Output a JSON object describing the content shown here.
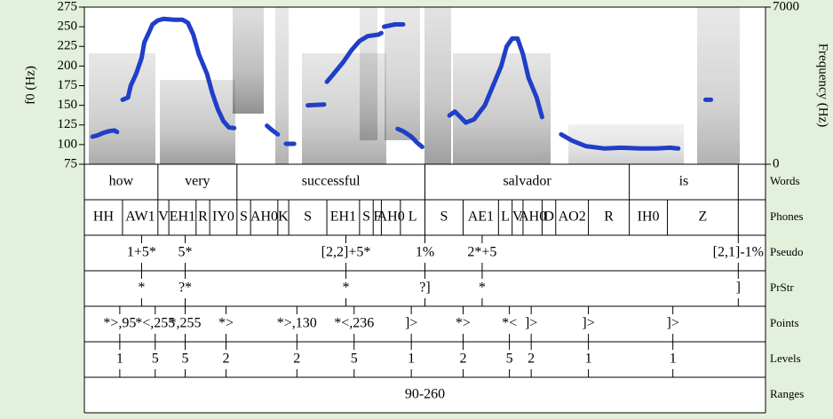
{
  "chart_data": {
    "type": "line",
    "ylabel": "f0 (Hz)",
    "y2label": "Frequency (Hz)",
    "xlim": [
      0,
      2.5
    ],
    "ylim": [
      75,
      275
    ],
    "yticks": [
      75,
      100,
      125,
      150,
      175,
      200,
      225,
      250,
      275
    ],
    "y2lim": [
      0,
      7000
    ],
    "y2ticks": [
      0,
      7000
    ],
    "series": [
      {
        "color": "#1f3fc8",
        "x": [
          0.03,
          0.05,
          0.07,
          0.09,
          0.11,
          0.12,
          null,
          0.14,
          0.16,
          0.17,
          0.19,
          0.21,
          0.22,
          0.24,
          0.25,
          0.27,
          0.29,
          0.33,
          0.36,
          0.38,
          0.4,
          0.42,
          0.45,
          0.47,
          0.49,
          0.51,
          0.53,
          0.55,
          null,
          0.67,
          0.69,
          0.71,
          null,
          0.74,
          0.77,
          null,
          0.82,
          0.88,
          null,
          0.89,
          0.91,
          0.95,
          0.98,
          1.01,
          1.04,
          1.08,
          1.09,
          null,
          1.1,
          1.14,
          1.17,
          null,
          1.15,
          1.17,
          1.2,
          1.22,
          1.24,
          null,
          1.34,
          1.36,
          1.38,
          1.4,
          1.43,
          1.47,
          1.5,
          1.53,
          1.55,
          1.57,
          1.59,
          1.61,
          1.63,
          1.66,
          1.68,
          null,
          1.75,
          1.79,
          1.84,
          1.91,
          1.97,
          2.04,
          2.1,
          2.15,
          2.18,
          null,
          2.28,
          2.3
        ],
        "values": [
          110,
          112,
          115,
          117,
          118,
          116,
          null,
          157,
          160,
          175,
          190,
          210,
          230,
          245,
          253,
          258,
          260,
          259,
          259,
          255,
          240,
          215,
          190,
          165,
          145,
          130,
          122,
          121,
          null,
          124,
          118,
          113,
          null,
          101,
          101,
          null,
          150,
          151,
          null,
          180,
          188,
          205,
          220,
          232,
          238,
          240,
          242,
          null,
          250,
          253,
          253,
          null,
          120,
          117,
          110,
          103,
          97,
          null,
          137,
          142,
          135,
          128,
          132,
          150,
          175,
          200,
          225,
          235,
          235,
          215,
          185,
          160,
          135,
          null,
          113,
          105,
          98,
          95,
          96,
          95,
          95,
          96,
          95,
          null,
          157,
          157
        ]
      }
    ],
    "tiers": [
      {
        "name": "Words",
        "kind": "interval",
        "boundaries": [
          0,
          0.27,
          0.56,
          1.25,
          2.0,
          2.4,
          2.5
        ],
        "labels": [
          "how",
          "very",
          "successful",
          "salvador",
          "is",
          null
        ]
      },
      {
        "name": "Phones",
        "kind": "interval",
        "boundaries": [
          0,
          0.14,
          0.27,
          0.31,
          0.41,
          0.46,
          0.56,
          0.61,
          0.71,
          0.75,
          0.89,
          1.01,
          1.06,
          1.09,
          1.16,
          1.25,
          1.39,
          1.52,
          1.57,
          1.61,
          1.68,
          1.73,
          1.85,
          2.0,
          2.14,
          2.4,
          2.5
        ],
        "labels": [
          "HH",
          "AW1",
          "V",
          "EH1",
          "R",
          "IY0",
          "S",
          "AH0",
          "K",
          "S",
          "EH1",
          "S",
          "F",
          "AH0",
          "L",
          "S",
          "AE1",
          "L",
          "V",
          "AH0",
          "D",
          "AO2",
          "R",
          "IH0",
          "Z",
          null
        ]
      },
      {
        "name": "Pseudo",
        "kind": "point",
        "times": [
          0.21,
          0.37,
          0.96,
          1.25,
          1.46,
          2.4
        ],
        "labels": [
          "1+5*",
          "5*",
          "[2,2]+5*",
          "1%",
          "2*+5",
          "[2,1]-1%"
        ]
      },
      {
        "name": "PrStr",
        "kind": "point",
        "times": [
          0.21,
          0.37,
          0.96,
          1.25,
          1.46,
          2.4
        ],
        "labels": [
          "*",
          "?*",
          "*",
          "?]",
          "*",
          "]"
        ]
      },
      {
        "name": "Points",
        "kind": "point",
        "times": [
          0.13,
          0.26,
          0.37,
          0.52,
          0.78,
          0.99,
          1.2,
          1.39,
          1.56,
          1.64,
          1.85,
          2.16
        ],
        "labels": [
          "*>,95",
          "*<,255",
          "*,255",
          "*>",
          "*>,130",
          "*<,236",
          "]>",
          "*>",
          "*<",
          "]>",
          "]>",
          "]>"
        ]
      },
      {
        "name": "Levels",
        "kind": "point",
        "times": [
          0.13,
          0.26,
          0.37,
          0.52,
          0.78,
          0.99,
          1.2,
          1.39,
          1.56,
          1.64,
          1.85,
          2.16
        ],
        "labels": [
          "1",
          "5",
          "5",
          "2",
          "2",
          "5",
          "1",
          "2",
          "5",
          "2",
          "1",
          "1"
        ]
      },
      {
        "name": "Ranges",
        "kind": "interval",
        "boundaries": [
          0,
          2.5
        ],
        "labels": [
          "90-260"
        ]
      }
    ]
  }
}
